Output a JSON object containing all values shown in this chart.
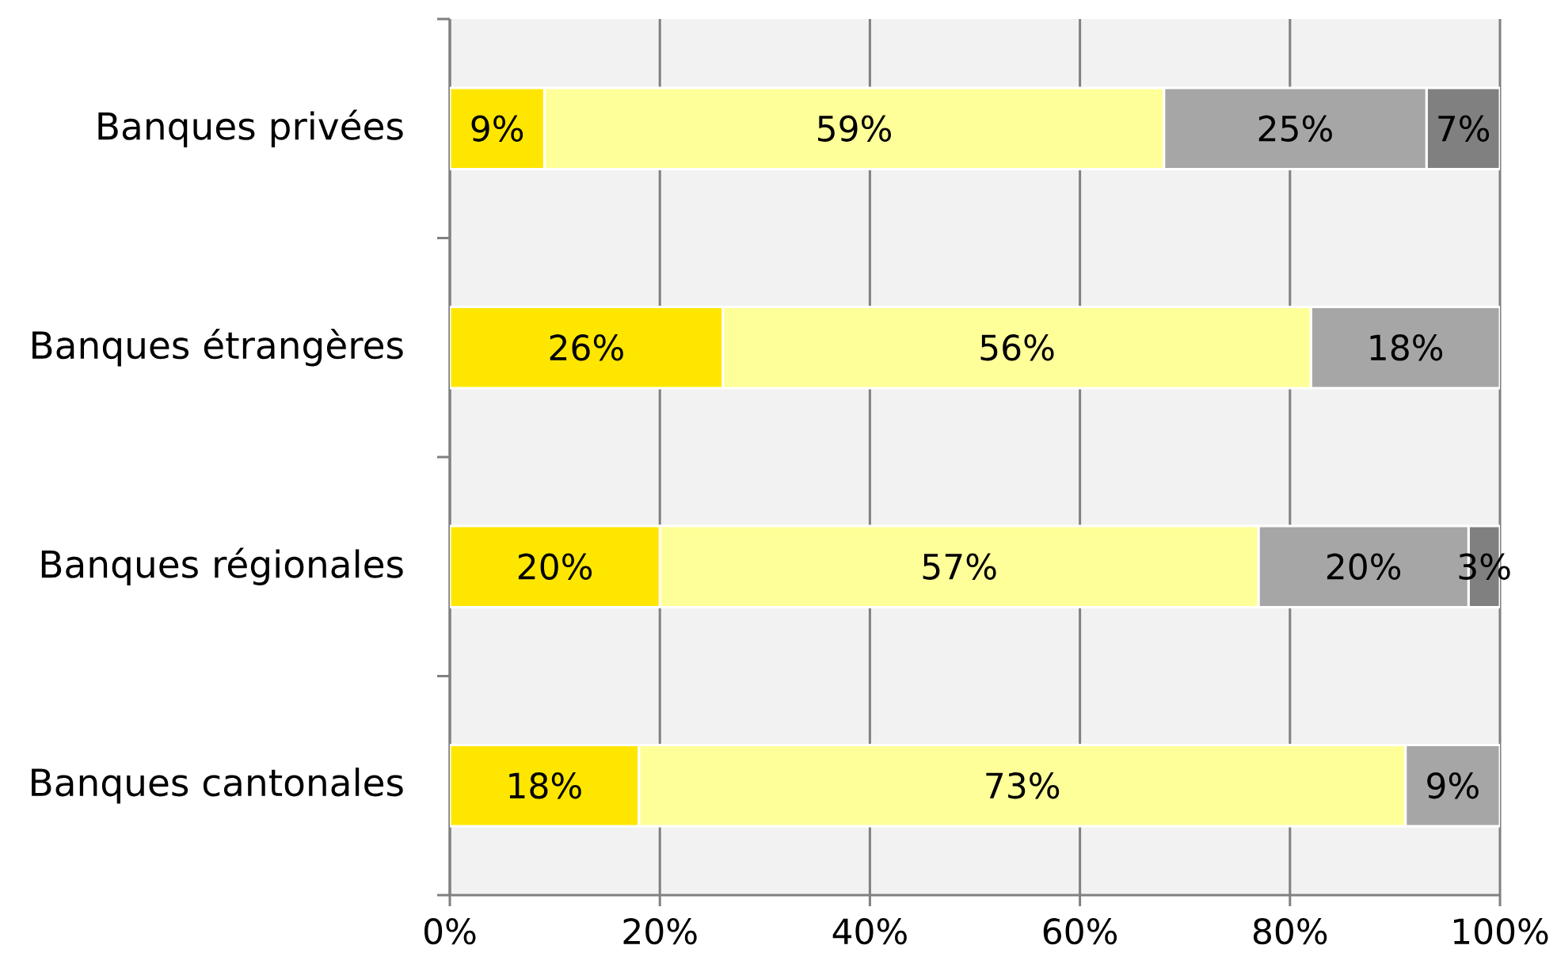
{
  "chart_data": {
    "type": "bar",
    "orientation": "horizontal",
    "stacked": true,
    "categories": [
      "Banques privées",
      "Banques étrangères",
      "Banques régionales",
      "Banques cantonales"
    ],
    "series": [
      {
        "color": "#ffe600",
        "values": [
          9,
          26,
          20,
          18
        ],
        "value_labels": [
          "9%",
          "26%",
          "20%",
          "18%"
        ]
      },
      {
        "color": "#ffff99",
        "values": [
          59,
          56,
          57,
          73
        ],
        "value_labels": [
          "59%",
          "56%",
          "57%",
          "73%"
        ]
      },
      {
        "color": "#a6a6a6",
        "values": [
          25,
          18,
          20,
          9
        ],
        "value_labels": [
          "25%",
          "18%",
          "20%",
          "9%"
        ]
      },
      {
        "color": "#808080",
        "values": [
          7,
          null,
          3,
          null
        ],
        "value_labels": [
          "7%",
          null,
          "3%",
          null
        ]
      }
    ],
    "xlim": [
      0,
      100
    ],
    "xticks": [
      {
        "value": 0,
        "label": "0%"
      },
      {
        "value": 20,
        "label": "20%"
      },
      {
        "value": 40,
        "label": "40%"
      },
      {
        "value": 60,
        "label": "60%"
      },
      {
        "value": 80,
        "label": "80%"
      },
      {
        "value": 100,
        "label": "100%"
      }
    ],
    "grid": "x"
  }
}
